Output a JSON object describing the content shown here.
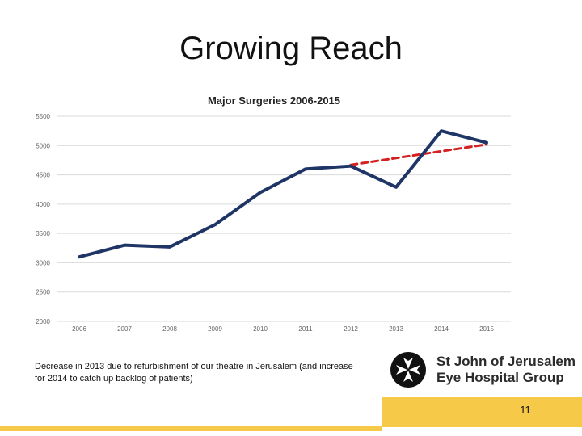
{
  "slide": {
    "title": "Growing Reach",
    "footnote": "Decrease in 2013 due to refurbishment of our theatre in Jerusalem (and increase for 2014 to catch up backlog of patients)",
    "page_number": "11",
    "logo_line1": "St John of Jerusalem",
    "logo_line2": "Eye Hospital Group",
    "accent_color": "#f7c948"
  },
  "chart_data": {
    "type": "line",
    "title": "Major Surgeries 2006-2015",
    "xlabel": "",
    "ylabel": "",
    "categories": [
      "2006",
      "2007",
      "2008",
      "2009",
      "2010",
      "2011",
      "2012",
      "2013",
      "2014",
      "2015"
    ],
    "series": [
      {
        "values": [
          3100,
          3300,
          3270,
          3650,
          4200,
          4600,
          4650,
          4290,
          5250,
          5050
        ],
        "color": "#1f3566",
        "style": "solid"
      },
      {
        "x": [
          "2012",
          "2015"
        ],
        "values": [
          4670,
          5020
        ],
        "color": "#d42020",
        "style": "dashed"
      }
    ],
    "ylim": [
      2000,
      5500
    ],
    "yticks": [
      2000,
      2500,
      3000,
      3500,
      4000,
      4500,
      5000,
      5500
    ],
    "grid": true,
    "legend": "none"
  }
}
